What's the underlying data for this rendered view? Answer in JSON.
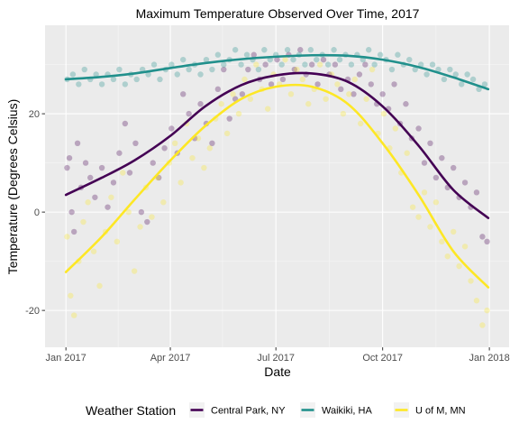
{
  "chart_data": {
    "type": "scatter",
    "title": "Maximum Temperature Observed Over Time, 2017",
    "xlabel": "Date",
    "ylabel": "Temperature (Degrees Celsius)",
    "x_ticks": [
      "Jan 2017",
      "Apr 2017",
      "Jul 2017",
      "Oct 2017",
      "Jan 2018"
    ],
    "y_ticks": [
      -20,
      0,
      20
    ],
    "xlim": [
      "2016-12-14",
      "2018-01-18"
    ],
    "ylim": [
      -27.5,
      38
    ],
    "grid": true,
    "legend": {
      "title": "Weather Station",
      "position": "bottom"
    },
    "smooth": true,
    "point_opacity": 0.3,
    "series": [
      {
        "name": "Central Park, NY",
        "color": "#440154",
        "trend": [
          [
            "2017-01-01",
            3.5
          ],
          [
            "2017-02-01",
            7
          ],
          [
            "2017-03-01",
            10.5
          ],
          [
            "2017-04-01",
            15.5
          ],
          [
            "2017-05-01",
            21.5
          ],
          [
            "2017-06-01",
            25.8
          ],
          [
            "2017-07-01",
            27.8
          ],
          [
            "2017-08-01",
            28.2
          ],
          [
            "2017-09-01",
            26.5
          ],
          [
            "2017-10-01",
            21.5
          ],
          [
            "2017-11-01",
            13.5
          ],
          [
            "2017-12-01",
            4.5
          ],
          [
            "2017-12-31",
            -1.2
          ]
        ],
        "points": [
          [
            "2017-01-02",
            9
          ],
          [
            "2017-01-04",
            11
          ],
          [
            "2017-01-06",
            0
          ],
          [
            "2017-01-08",
            -4
          ],
          [
            "2017-01-11",
            14
          ],
          [
            "2017-01-14",
            5
          ],
          [
            "2017-01-18",
            10
          ],
          [
            "2017-01-22",
            7
          ],
          [
            "2017-01-26",
            3
          ],
          [
            "2017-02-01",
            9
          ],
          [
            "2017-02-06",
            1
          ],
          [
            "2017-02-11",
            6
          ],
          [
            "2017-02-16",
            12
          ],
          [
            "2017-02-21",
            18
          ],
          [
            "2017-02-25",
            8
          ],
          [
            "2017-03-02",
            14
          ],
          [
            "2017-03-07",
            0
          ],
          [
            "2017-03-12",
            -2
          ],
          [
            "2017-03-17",
            10
          ],
          [
            "2017-03-22",
            7
          ],
          [
            "2017-03-27",
            13
          ],
          [
            "2017-04-02",
            17
          ],
          [
            "2017-04-07",
            12
          ],
          [
            "2017-04-12",
            24
          ],
          [
            "2017-04-17",
            20
          ],
          [
            "2017-04-22",
            15
          ],
          [
            "2017-04-27",
            22
          ],
          [
            "2017-05-02",
            18
          ],
          [
            "2017-05-07",
            14
          ],
          [
            "2017-05-12",
            25
          ],
          [
            "2017-05-17",
            29
          ],
          [
            "2017-05-22",
            19
          ],
          [
            "2017-05-27",
            23
          ],
          [
            "2017-06-02",
            24
          ],
          [
            "2017-06-07",
            29
          ],
          [
            "2017-06-12",
            32
          ],
          [
            "2017-06-17",
            27
          ],
          [
            "2017-06-22",
            30
          ],
          [
            "2017-06-27",
            26
          ],
          [
            "2017-07-02",
            31
          ],
          [
            "2017-07-07",
            27
          ],
          [
            "2017-07-12",
            32
          ],
          [
            "2017-07-17",
            29
          ],
          [
            "2017-07-22",
            33
          ],
          [
            "2017-07-27",
            28
          ],
          [
            "2017-08-01",
            30
          ],
          [
            "2017-08-06",
            26
          ],
          [
            "2017-08-11",
            31
          ],
          [
            "2017-08-16",
            28
          ],
          [
            "2017-08-21",
            30
          ],
          [
            "2017-08-26",
            25
          ],
          [
            "2017-09-01",
            27
          ],
          [
            "2017-09-06",
            24
          ],
          [
            "2017-09-11",
            28
          ],
          [
            "2017-09-16",
            30
          ],
          [
            "2017-09-21",
            26
          ],
          [
            "2017-09-26",
            22
          ],
          [
            "2017-10-01",
            24
          ],
          [
            "2017-10-06",
            21
          ],
          [
            "2017-10-11",
            26
          ],
          [
            "2017-10-16",
            18
          ],
          [
            "2017-10-21",
            22
          ],
          [
            "2017-10-26",
            15
          ],
          [
            "2017-11-01",
            17
          ],
          [
            "2017-11-06",
            10
          ],
          [
            "2017-11-11",
            14
          ],
          [
            "2017-11-16",
            7
          ],
          [
            "2017-11-21",
            11
          ],
          [
            "2017-11-26",
            5
          ],
          [
            "2017-12-01",
            9
          ],
          [
            "2017-12-06",
            3
          ],
          [
            "2017-12-11",
            6
          ],
          [
            "2017-12-16",
            1
          ],
          [
            "2017-12-21",
            4
          ],
          [
            "2017-12-26",
            -5
          ],
          [
            "2017-12-30",
            -6
          ]
        ]
      },
      {
        "name": "Waikiki, HA",
        "color": "#21908C",
        "trend": [
          [
            "2017-01-01",
            27
          ],
          [
            "2017-02-01",
            27.5
          ],
          [
            "2017-03-01",
            28.2
          ],
          [
            "2017-04-01",
            29.3
          ],
          [
            "2017-05-01",
            30.3
          ],
          [
            "2017-06-01",
            31.1
          ],
          [
            "2017-07-01",
            31.6
          ],
          [
            "2017-08-01",
            31.9
          ],
          [
            "2017-09-01",
            31.8
          ],
          [
            "2017-10-01",
            31
          ],
          [
            "2017-11-01",
            29.5
          ],
          [
            "2017-12-01",
            27.4
          ],
          [
            "2017-12-31",
            25
          ]
        ],
        "points": [
          [
            "2017-01-02",
            27
          ],
          [
            "2017-01-07",
            28
          ],
          [
            "2017-01-12",
            26
          ],
          [
            "2017-01-17",
            29
          ],
          [
            "2017-01-22",
            27
          ],
          [
            "2017-01-27",
            28
          ],
          [
            "2017-02-01",
            26
          ],
          [
            "2017-02-06",
            28
          ],
          [
            "2017-02-11",
            27
          ],
          [
            "2017-02-16",
            29
          ],
          [
            "2017-02-21",
            26
          ],
          [
            "2017-02-26",
            28
          ],
          [
            "2017-03-03",
            27
          ],
          [
            "2017-03-08",
            29
          ],
          [
            "2017-03-13",
            28
          ],
          [
            "2017-03-18",
            30
          ],
          [
            "2017-03-23",
            27
          ],
          [
            "2017-03-28",
            29
          ],
          [
            "2017-04-02",
            30
          ],
          [
            "2017-04-07",
            28
          ],
          [
            "2017-04-12",
            31
          ],
          [
            "2017-04-17",
            29
          ],
          [
            "2017-04-22",
            30
          ],
          [
            "2017-04-27",
            28
          ],
          [
            "2017-05-02",
            31
          ],
          [
            "2017-05-07",
            29
          ],
          [
            "2017-05-12",
            32
          ],
          [
            "2017-05-17",
            30
          ],
          [
            "2017-05-22",
            31
          ],
          [
            "2017-05-27",
            33
          ],
          [
            "2017-06-01",
            30
          ],
          [
            "2017-06-06",
            32
          ],
          [
            "2017-06-11",
            31
          ],
          [
            "2017-06-16",
            29
          ],
          [
            "2017-06-21",
            33
          ],
          [
            "2017-06-26",
            31
          ],
          [
            "2017-07-01",
            32
          ],
          [
            "2017-07-06",
            30
          ],
          [
            "2017-07-11",
            33
          ],
          [
            "2017-07-16",
            31
          ],
          [
            "2017-07-21",
            32
          ],
          [
            "2017-07-26",
            30
          ],
          [
            "2017-07-31",
            33
          ],
          [
            "2017-08-05",
            31
          ],
          [
            "2017-08-10",
            32
          ],
          [
            "2017-08-15",
            30
          ],
          [
            "2017-08-20",
            33
          ],
          [
            "2017-08-25",
            31
          ],
          [
            "2017-08-30",
            32
          ],
          [
            "2017-09-04",
            30
          ],
          [
            "2017-09-09",
            32
          ],
          [
            "2017-09-14",
            31
          ],
          [
            "2017-09-19",
            33
          ],
          [
            "2017-09-24",
            30
          ],
          [
            "2017-09-29",
            32
          ],
          [
            "2017-10-04",
            31
          ],
          [
            "2017-10-09",
            29
          ],
          [
            "2017-10-14",
            32
          ],
          [
            "2017-10-19",
            30
          ],
          [
            "2017-10-24",
            31
          ],
          [
            "2017-10-29",
            29
          ],
          [
            "2017-11-03",
            30
          ],
          [
            "2017-11-08",
            28
          ],
          [
            "2017-11-13",
            30
          ],
          [
            "2017-11-18",
            29
          ],
          [
            "2017-11-23",
            27
          ],
          [
            "2017-11-28",
            29
          ],
          [
            "2017-12-03",
            28
          ],
          [
            "2017-12-08",
            26
          ],
          [
            "2017-12-13",
            28
          ],
          [
            "2017-12-18",
            27
          ],
          [
            "2017-12-23",
            25
          ],
          [
            "2017-12-28",
            26
          ]
        ]
      },
      {
        "name": "U of M, MN",
        "color": "#FDE725",
        "trend": [
          [
            "2017-01-01",
            -12.2
          ],
          [
            "2017-02-01",
            -5
          ],
          [
            "2017-03-01",
            2.5
          ],
          [
            "2017-04-01",
            10.5
          ],
          [
            "2017-05-01",
            17.5
          ],
          [
            "2017-06-01",
            23
          ],
          [
            "2017-07-01",
            25.5
          ],
          [
            "2017-08-01",
            25.5
          ],
          [
            "2017-09-01",
            22
          ],
          [
            "2017-10-01",
            14
          ],
          [
            "2017-11-01",
            3.5
          ],
          [
            "2017-12-01",
            -8
          ],
          [
            "2017-12-31",
            -15.3
          ]
        ],
        "points": [
          [
            "2017-01-02",
            -5
          ],
          [
            "2017-01-05",
            -17
          ],
          [
            "2017-01-08",
            -21
          ],
          [
            "2017-01-12",
            -10
          ],
          [
            "2017-01-16",
            -2
          ],
          [
            "2017-01-20",
            2
          ],
          [
            "2017-01-25",
            -8
          ],
          [
            "2017-01-30",
            -15
          ],
          [
            "2017-02-04",
            -4
          ],
          [
            "2017-02-09",
            3
          ],
          [
            "2017-02-14",
            -6
          ],
          [
            "2017-02-19",
            8
          ],
          [
            "2017-02-24",
            0
          ],
          [
            "2017-03-01",
            -12
          ],
          [
            "2017-03-06",
            -3
          ],
          [
            "2017-03-11",
            5
          ],
          [
            "2017-03-16",
            -1
          ],
          [
            "2017-03-21",
            7
          ],
          [
            "2017-03-26",
            2
          ],
          [
            "2017-03-31",
            10
          ],
          [
            "2017-04-05",
            14
          ],
          [
            "2017-04-10",
            6
          ],
          [
            "2017-04-15",
            18
          ],
          [
            "2017-04-20",
            11
          ],
          [
            "2017-04-25",
            15
          ],
          [
            "2017-04-30",
            9
          ],
          [
            "2017-05-05",
            13
          ],
          [
            "2017-05-10",
            19
          ],
          [
            "2017-05-15",
            22
          ],
          [
            "2017-05-20",
            16
          ],
          [
            "2017-05-25",
            24
          ],
          [
            "2017-05-30",
            20
          ],
          [
            "2017-06-04",
            27
          ],
          [
            "2017-06-09",
            23
          ],
          [
            "2017-06-14",
            30
          ],
          [
            "2017-06-19",
            25
          ],
          [
            "2017-06-24",
            21
          ],
          [
            "2017-06-29",
            28
          ],
          [
            "2017-07-04",
            26
          ],
          [
            "2017-07-09",
            31
          ],
          [
            "2017-07-14",
            24
          ],
          [
            "2017-07-19",
            29
          ],
          [
            "2017-07-24",
            27
          ],
          [
            "2017-07-29",
            22
          ],
          [
            "2017-08-03",
            25
          ],
          [
            "2017-08-08",
            30
          ],
          [
            "2017-08-13",
            23
          ],
          [
            "2017-08-18",
            28
          ],
          [
            "2017-08-23",
            26
          ],
          [
            "2017-08-28",
            20
          ],
          [
            "2017-09-02",
            24
          ],
          [
            "2017-09-07",
            27
          ],
          [
            "2017-09-12",
            18
          ],
          [
            "2017-09-17",
            23
          ],
          [
            "2017-09-22",
            29
          ],
          [
            "2017-09-27",
            16
          ],
          [
            "2017-10-02",
            20
          ],
          [
            "2017-10-07",
            13
          ],
          [
            "2017-10-12",
            17
          ],
          [
            "2017-10-17",
            8
          ],
          [
            "2017-10-22",
            12
          ],
          [
            "2017-10-27",
            1
          ],
          [
            "2017-11-01",
            -1
          ],
          [
            "2017-11-06",
            4
          ],
          [
            "2017-11-11",
            -3
          ],
          [
            "2017-11-16",
            2
          ],
          [
            "2017-11-21",
            -6
          ],
          [
            "2017-11-26",
            -9
          ],
          [
            "2017-12-01",
            -4
          ],
          [
            "2017-12-06",
            -11
          ],
          [
            "2017-12-11",
            -7
          ],
          [
            "2017-12-16",
            -14
          ],
          [
            "2017-12-21",
            -18
          ],
          [
            "2017-12-26",
            -23
          ],
          [
            "2017-12-30",
            -20
          ]
        ]
      }
    ]
  }
}
